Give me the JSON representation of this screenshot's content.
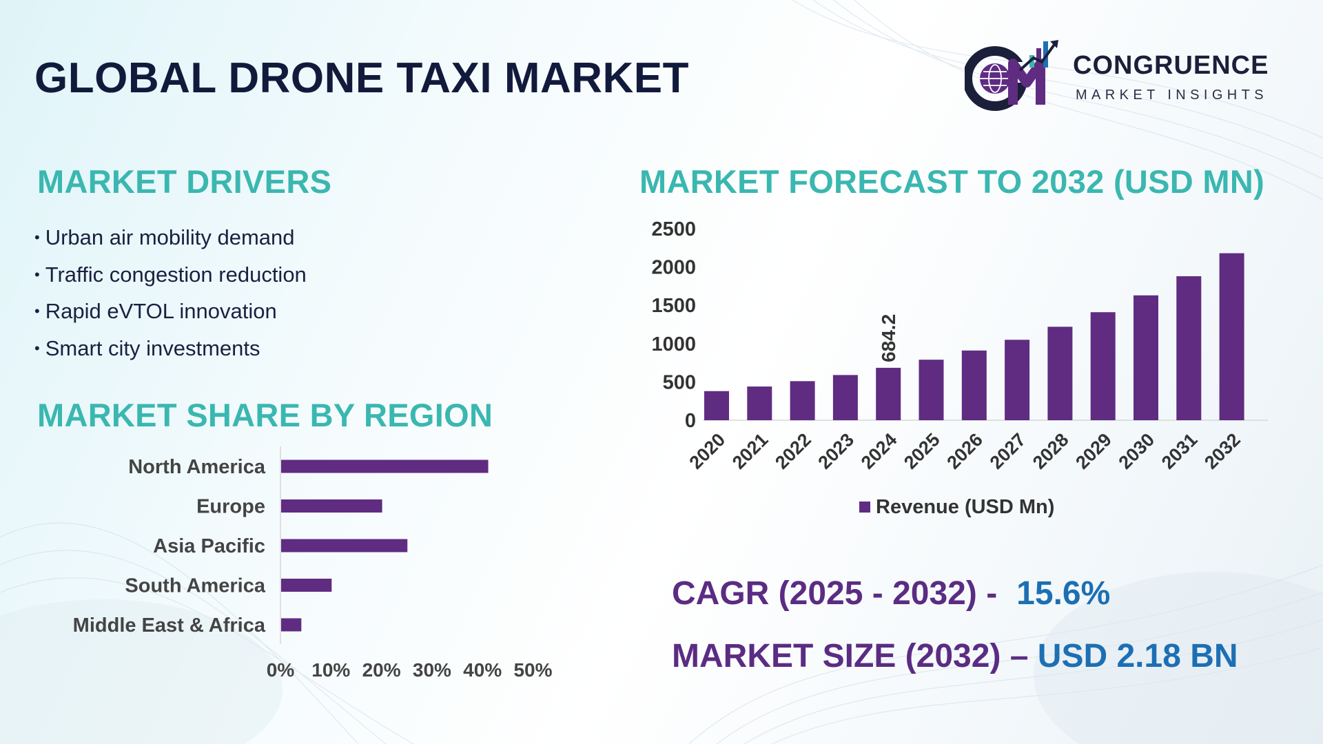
{
  "title": "GLOBAL DRONE TAXI MARKET",
  "logo": {
    "name": "CONGRUENCE",
    "tagline": "MARKET INSIGHTS",
    "monogram": "CM",
    "icon": "globe-growth-logo-icon"
  },
  "drivers": {
    "heading": "MARKET DRIVERS",
    "items": [
      "Urban air mobility demand",
      "Traffic congestion reduction",
      "Rapid eVTOL innovation",
      "Smart city investments"
    ]
  },
  "regions": {
    "heading": "MARKET SHARE BY REGION"
  },
  "forecast": {
    "heading": "MARKET FORECAST TO 2032 (USD MN)"
  },
  "kpis": {
    "cagr_label": "CAGR (2025 - 2032) -",
    "cagr_value": "15.6%",
    "size_label": "MARKET SIZE (2032) –",
    "size_value": "USD 2.18 BN"
  },
  "colors": {
    "bar": "#5f2c82",
    "heading": "#3ab7b0",
    "title": "#121a3c",
    "kpi_label": "#5b2c83",
    "kpi_value": "#1d6fb3"
  },
  "chart_data": [
    {
      "type": "bar",
      "orientation": "vertical",
      "title": "MARKET FORECAST TO 2032 (USD MN)",
      "categories": [
        "2020",
        "2021",
        "2022",
        "2023",
        "2024",
        "2025",
        "2026",
        "2027",
        "2028",
        "2029",
        "2030",
        "2031",
        "2032"
      ],
      "series": [
        {
          "name": "Revenue (USD Mn)",
          "values": [
            380,
            440,
            510,
            590,
            684.2,
            790,
            910,
            1050,
            1220,
            1410,
            1630,
            1880,
            2180
          ]
        }
      ],
      "data_labels": [
        {
          "category": "2024",
          "text": "684.2"
        }
      ],
      "ylim": [
        0,
        2500
      ],
      "yticks": [
        "0",
        "500",
        "1000",
        "1500",
        "2000",
        "2500"
      ],
      "legend": "bottom",
      "grid": false
    },
    {
      "type": "bar",
      "orientation": "horizontal",
      "title": "MARKET SHARE BY REGION",
      "categories": [
        "North America",
        "Europe",
        "Asia Pacific",
        "South America",
        "Middle East & Africa"
      ],
      "values": [
        41,
        20,
        25,
        10,
        4
      ],
      "xlim": [
        0,
        50
      ],
      "xticks": [
        "0%",
        "10%",
        "20%",
        "30%",
        "40%",
        "50%"
      ],
      "grid": false
    }
  ]
}
